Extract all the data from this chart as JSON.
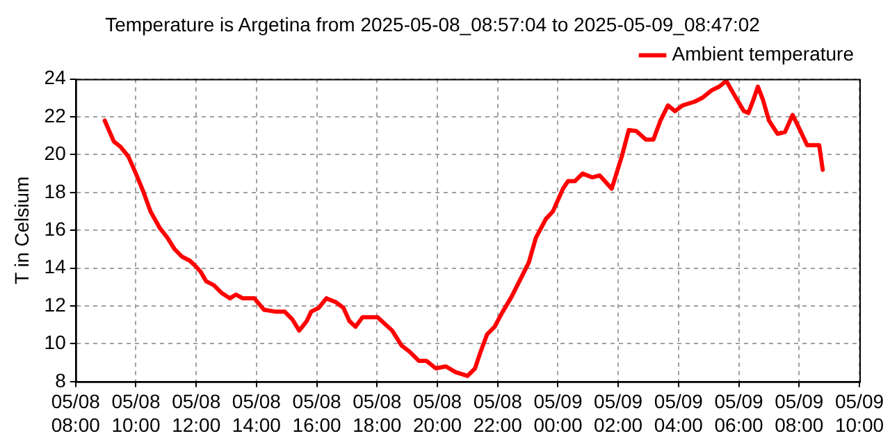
{
  "chart_data": {
    "type": "line",
    "title": "Temperature is Argetina from 2025-05-08_08:57:04 to 2025-05-09_08:47:02",
    "ylabel": "T in Celsium",
    "x": [
      "2025-05-08T08:58",
      "2025-05-08T09:16",
      "2025-05-08T09:30",
      "2025-05-08T09:45",
      "2025-05-08T10:00",
      "2025-05-08T10:14",
      "2025-05-08T10:29",
      "2025-05-08T10:48",
      "2025-05-08T11:03",
      "2025-05-08T11:17",
      "2025-05-08T11:32",
      "2025-05-08T11:47",
      "2025-05-08T11:59",
      "2025-05-08T12:09",
      "2025-05-08T12:20",
      "2025-05-08T12:35",
      "2025-05-08T12:50",
      "2025-05-08T13:07",
      "2025-05-08T13:19",
      "2025-05-08T13:33",
      "2025-05-08T13:56",
      "2025-05-08T14:02",
      "2025-05-08T14:15",
      "2025-05-08T14:37",
      "2025-05-08T14:56",
      "2025-05-08T15:11",
      "2025-05-08T15:25",
      "2025-05-08T15:40",
      "2025-05-08T15:49",
      "2025-05-08T16:04",
      "2025-05-08T16:19",
      "2025-05-08T16:38",
      "2025-05-08T16:53",
      "2025-05-08T17:05",
      "2025-05-08T17:17",
      "2025-05-08T17:31",
      "2025-05-08T18:01",
      "2025-05-08T18:30",
      "2025-05-08T18:49",
      "2025-05-08T19:04",
      "2025-05-08T19:23",
      "2025-05-08T19:38",
      "2025-05-08T19:57",
      "2025-05-08T20:17",
      "2025-05-08T20:36",
      "2025-05-08T21:00",
      "2025-05-08T21:15",
      "2025-05-08T21:25",
      "2025-05-08T21:39",
      "2025-05-08T21:54",
      "2025-05-08T22:08",
      "2025-05-08T22:28",
      "2025-05-08T22:47",
      "2025-05-08T23:02",
      "2025-05-08T23:16",
      "2025-05-08T23:36",
      "2025-05-08T23:50",
      "2025-05-09T00:10",
      "2025-05-09T00:20",
      "2025-05-09T00:34",
      "2025-05-09T00:49",
      "2025-05-09T01:08",
      "2025-05-09T01:23",
      "2025-05-09T01:47",
      "2025-05-09T02:07",
      "2025-05-09T02:21",
      "2025-05-09T02:36",
      "2025-05-09T02:55",
      "2025-05-09T03:10",
      "2025-05-09T03:24",
      "2025-05-09T03:39",
      "2025-05-09T03:53",
      "2025-05-09T04:08",
      "2025-05-09T04:32",
      "2025-05-09T04:47",
      "2025-05-09T05:06",
      "2025-05-09T05:21",
      "2025-05-09T05:35",
      "2025-05-09T05:50",
      "2025-05-09T06:10",
      "2025-05-09T06:19",
      "2025-05-09T06:29",
      "2025-05-09T06:38",
      "2025-05-09T06:48",
      "2025-05-09T07:00",
      "2025-05-09T07:17",
      "2025-05-09T07:32",
      "2025-05-09T07:47",
      "2025-05-09T08:00",
      "2025-05-09T08:16",
      "2025-05-09T08:40",
      "2025-05-09T08:47"
    ],
    "series": [
      {
        "name": "Ambient temperature",
        "color": "#ff0000",
        "values": [
          21.8,
          20.7,
          20.4,
          19.9,
          19.0,
          18.1,
          17.0,
          16.1,
          15.6,
          15.0,
          14.6,
          14.4,
          14.1,
          13.8,
          13.3,
          13.1,
          12.7,
          12.4,
          12.6,
          12.4,
          12.4,
          12.2,
          11.8,
          11.7,
          11.7,
          11.3,
          10.7,
          11.2,
          11.7,
          11.9,
          12.4,
          12.2,
          11.9,
          11.2,
          10.9,
          11.4,
          11.4,
          10.7,
          9.9,
          9.6,
          9.1,
          9.1,
          8.7,
          8.8,
          8.5,
          8.3,
          8.7,
          9.5,
          10.5,
          10.9,
          11.6,
          12.5,
          13.5,
          14.3,
          15.6,
          16.6,
          17.0,
          18.2,
          18.6,
          18.6,
          19.0,
          18.8,
          18.9,
          18.2,
          19.9,
          21.3,
          21.25,
          20.8,
          20.8,
          21.8,
          22.6,
          22.3,
          22.6,
          22.8,
          23.0,
          23.4,
          23.6,
          23.9,
          23.2,
          22.3,
          22.2,
          22.9,
          23.6,
          22.9,
          21.8,
          21.1,
          21.2,
          22.1,
          21.4,
          20.5,
          20.5,
          19.2
        ]
      }
    ],
    "xlim": [
      "2025-05-08T08:00",
      "2025-05-09T10:00"
    ],
    "xticks": [
      {
        "value": "2025-05-08T08:00",
        "label": "05/08 08:00"
      },
      {
        "value": "2025-05-08T10:00",
        "label": "05/08 10:00"
      },
      {
        "value": "2025-05-08T12:00",
        "label": "05/08 12:00"
      },
      {
        "value": "2025-05-08T14:00",
        "label": "05/08 14:00"
      },
      {
        "value": "2025-05-08T16:00",
        "label": "05/08 16:00"
      },
      {
        "value": "2025-05-08T18:00",
        "label": "05/08 18:00"
      },
      {
        "value": "2025-05-08T20:00",
        "label": "05/08 20:00"
      },
      {
        "value": "2025-05-08T22:00",
        "label": "05/08 22:00"
      },
      {
        "value": "2025-05-09T00:00",
        "label": "05/09 00:00"
      },
      {
        "value": "2025-05-09T02:00",
        "label": "05/09 02:00"
      },
      {
        "value": "2025-05-09T04:00",
        "label": "05/09 04:00"
      },
      {
        "value": "2025-05-09T06:00",
        "label": "05/09 06:00"
      },
      {
        "value": "2025-05-09T08:00",
        "label": "05/09 08:00"
      },
      {
        "value": "2025-05-09T10:00",
        "label": "05/09 10:00"
      }
    ],
    "ylim": [
      8,
      24
    ],
    "yticks": [
      8,
      10,
      12,
      14,
      16,
      18,
      20,
      22,
      24
    ],
    "grid": true,
    "legend": "top right",
    "marker": "none",
    "line_style": "solid"
  }
}
